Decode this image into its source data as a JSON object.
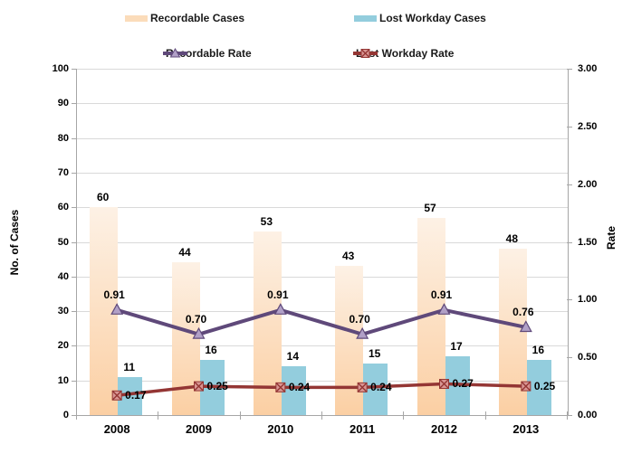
{
  "legend": {
    "recordable_cases": "Recordable Cases",
    "lost_workday_cases": "Lost Workday Cases",
    "recordable_rate": "Recordable Rate",
    "lost_workday_rate": "Lost Workday Rate"
  },
  "colors": {
    "recordable_bar_top": "#FDF1E5",
    "recordable_bar_bottom": "#FBCFA3",
    "recordable_swatch": "#FBDCBA",
    "lost_workday_bar": "#93CDDD",
    "recordable_rate_line": "#5F497A",
    "recordable_rate_marker_fill": "#B1A0C7",
    "lost_workday_rate_line": "#943634",
    "lost_workday_rate_marker_fill": "#D99694",
    "gridline": "#D9D9D9",
    "axis_line": "#A6A6A6",
    "text": "#000000"
  },
  "chart_data": {
    "type": "bar",
    "subtype": "bar-line-combo",
    "categories": [
      "2008",
      "2009",
      "2010",
      "2011",
      "2012",
      "2013"
    ],
    "series": [
      {
        "name": "Recordable Cases",
        "type": "bar",
        "axis": "left",
        "values": [
          60,
          44,
          53,
          43,
          57,
          48
        ]
      },
      {
        "name": "Lost Workday Cases",
        "type": "bar",
        "axis": "left",
        "values": [
          11,
          16,
          14,
          15,
          17,
          16
        ]
      },
      {
        "name": "Recordable Rate",
        "type": "line",
        "axis": "right",
        "marker": "triangle",
        "values": [
          0.91,
          0.7,
          0.91,
          0.7,
          0.91,
          0.76
        ]
      },
      {
        "name": "Lost Workday Rate",
        "type": "line",
        "axis": "right",
        "marker": "boxed-x",
        "values": [
          0.17,
          0.25,
          0.24,
          0.24,
          0.27,
          0.25
        ]
      }
    ],
    "left_axis": {
      "label": "No. of Cases",
      "min": 0,
      "max": 100,
      "step": 10,
      "decimals": 0
    },
    "right_axis": {
      "label": "Rate",
      "min": 0.0,
      "max": 3.0,
      "step": 0.5,
      "decimals": 2
    },
    "grid": true,
    "legend_position": "top",
    "data_labels": true
  }
}
